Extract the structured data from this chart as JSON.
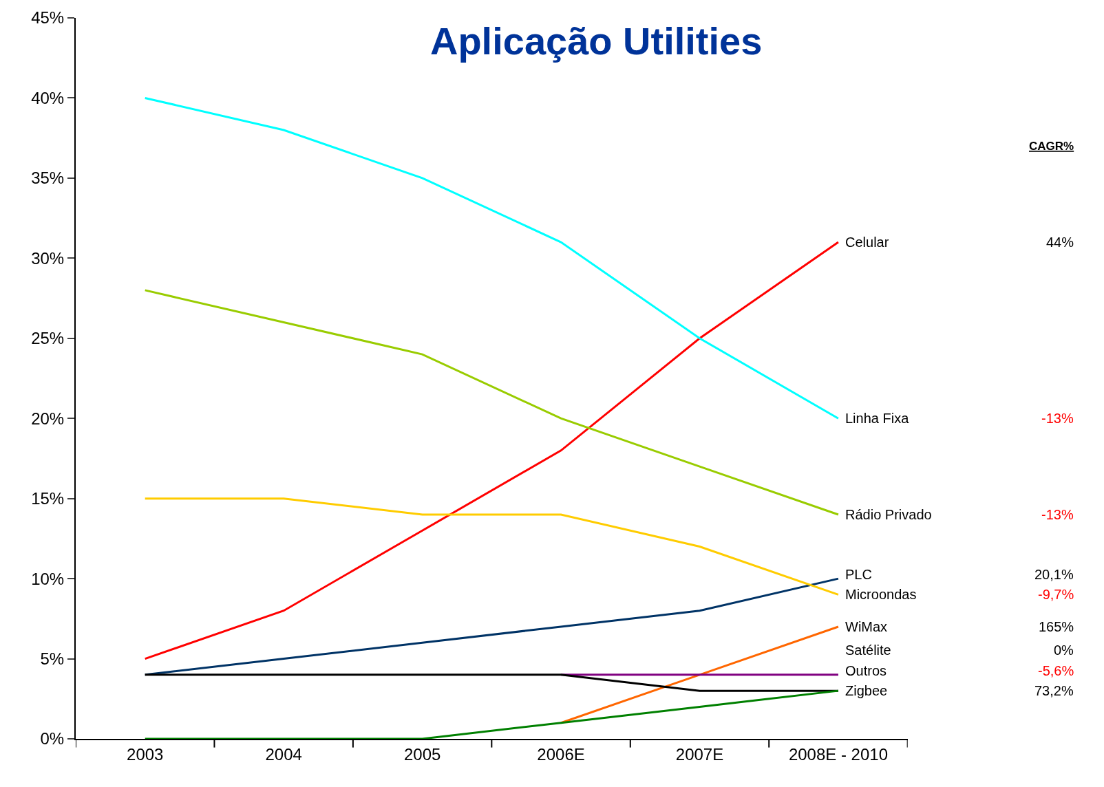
{
  "chart_data": {
    "type": "line",
    "title": "Aplicação Utilities",
    "categories": [
      "2003",
      "2004",
      "2005",
      "2006E",
      "2007E",
      "2008E - 2010"
    ],
    "series": [
      {
        "name": "Celular",
        "color": "#ff0000",
        "values": [
          5,
          8,
          13,
          18,
          25,
          31
        ]
      },
      {
        "name": "Linha Fixa",
        "color": "#00ffff",
        "values": [
          40,
          38,
          35,
          31,
          25,
          20
        ]
      },
      {
        "name": "Rádio Privado",
        "color": "#99cc00",
        "values": [
          28,
          26,
          24,
          20,
          17,
          14
        ]
      },
      {
        "name": "PLC",
        "color": "#003366",
        "values": [
          4,
          5,
          6,
          7,
          8,
          10
        ]
      },
      {
        "name": "Microondas",
        "color": "#ffcc00",
        "values": [
          15,
          15,
          14,
          14,
          12,
          9
        ]
      },
      {
        "name": "WiMax",
        "color": "#ff6600",
        "values": [
          null,
          null,
          null,
          1,
          4,
          7
        ]
      },
      {
        "name": "Satélite",
        "color": "#800080",
        "values": [
          null,
          null,
          null,
          4,
          4,
          4
        ]
      },
      {
        "name": "Outros",
        "color": "#000000",
        "values": [
          4,
          4,
          4,
          4,
          3,
          3
        ]
      },
      {
        "name": "Zigbee",
        "color": "#008000",
        "values": [
          0,
          0,
          0,
          1,
          2,
          3
        ]
      }
    ],
    "ylim": [
      0,
      45
    ],
    "yticks": [
      {
        "value": 0,
        "label": "0%"
      },
      {
        "value": 5,
        "label": "5%"
      },
      {
        "value": 10,
        "label": "10%"
      },
      {
        "value": 15,
        "label": "15%"
      },
      {
        "value": 20,
        "label": "20%"
      },
      {
        "value": 25,
        "label": "25%"
      },
      {
        "value": 30,
        "label": "30%"
      },
      {
        "value": 35,
        "label": "35%"
      },
      {
        "value": 40,
        "label": "40%"
      },
      {
        "value": 45,
        "label": "45%"
      }
    ],
    "annotations": [
      "CAGR%",
      "44%",
      "-13%",
      "-13%",
      "20,1%",
      "-9,7%",
      "165%",
      "0%",
      "-5,6%",
      "73,2%"
    ],
    "legend": false,
    "marker": "none",
    "line_style": "solid"
  }
}
